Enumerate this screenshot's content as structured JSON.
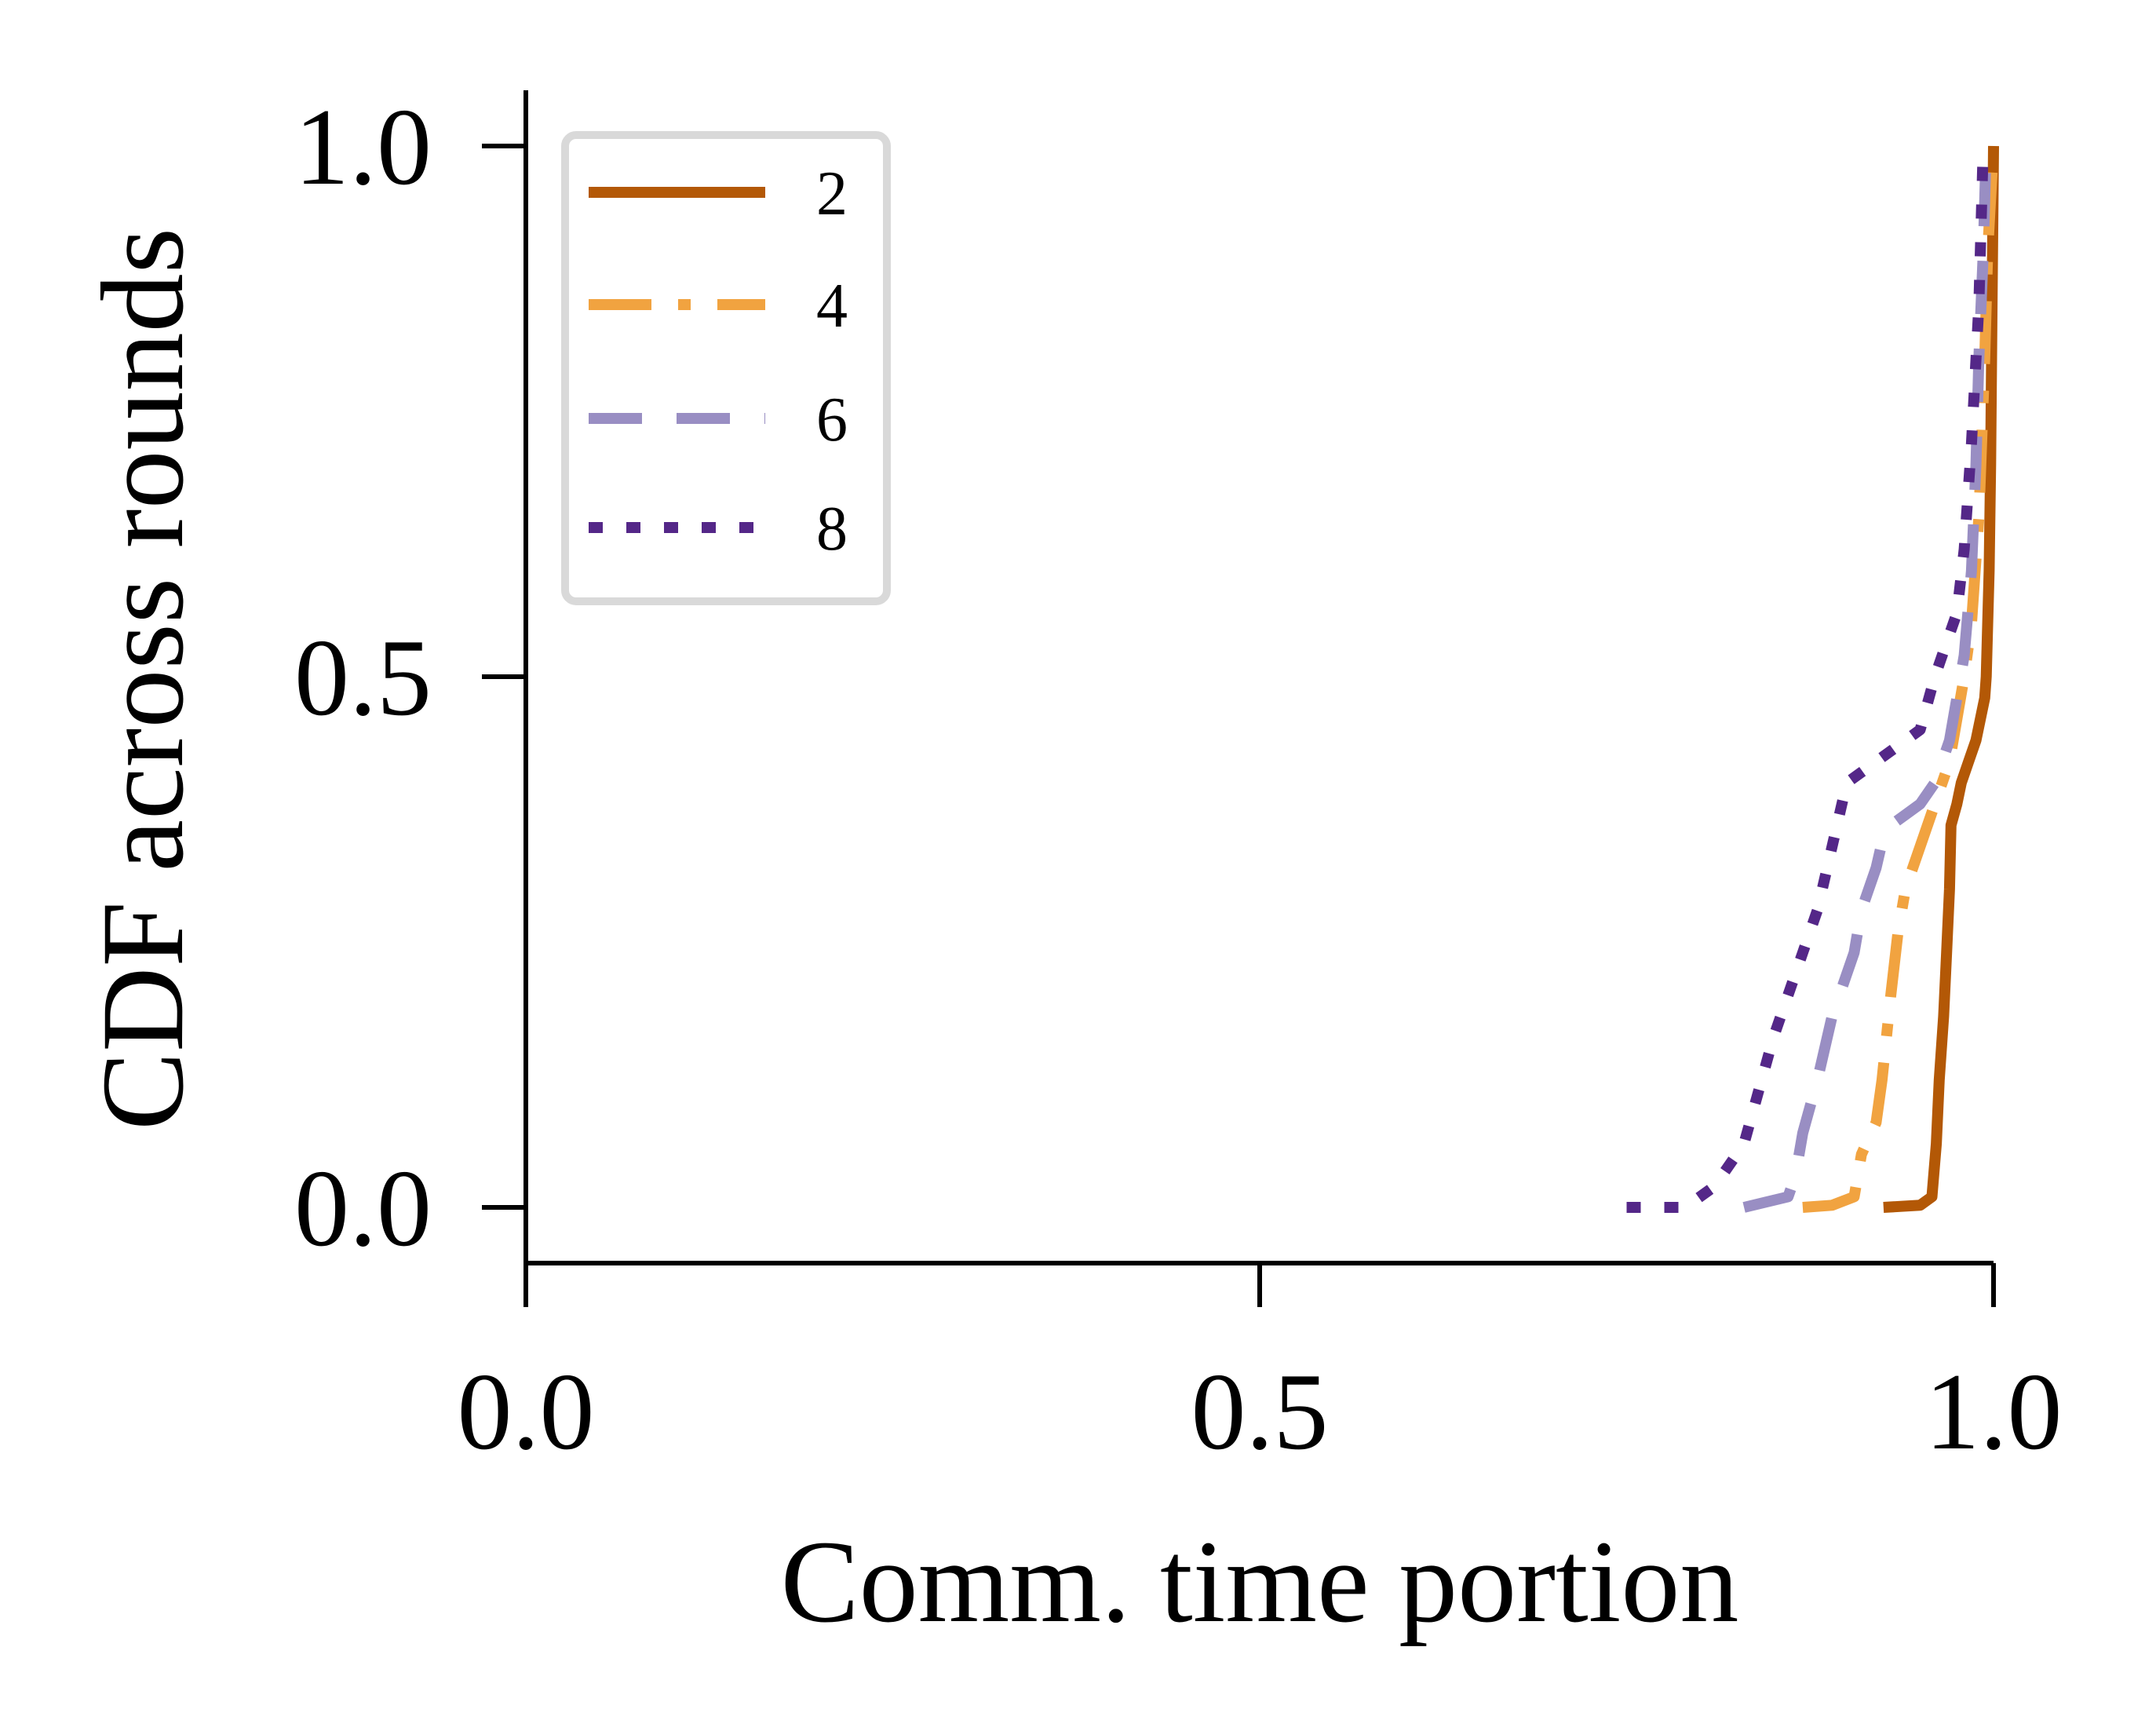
{
  "chart_data": {
    "type": "line",
    "title": "",
    "xlabel": "Comm. time portion",
    "ylabel": "CDF across rounds",
    "xlim": [
      0.0,
      1.0
    ],
    "ylim": [
      -0.05,
      1.05
    ],
    "xticks": [
      "0.0",
      "0.5",
      "1.0"
    ],
    "yticks": [
      "0.0",
      "0.5",
      "1.0"
    ],
    "grid": false,
    "legend_position": "top-left",
    "series": [
      {
        "name": "2",
        "color": "#b35806",
        "dash": "solid",
        "x": [
          0.925,
          0.95,
          0.958,
          0.961,
          0.963,
          0.966,
          0.968,
          0.97,
          0.971,
          0.975,
          0.978,
          0.983,
          0.988,
          0.991,
          0.994,
          0.995,
          0.997,
          0.998,
          0.999,
          1.0
        ],
        "y": [
          0.0,
          0.002,
          0.01,
          0.06,
          0.12,
          0.18,
          0.24,
          0.3,
          0.36,
          0.38,
          0.4,
          0.42,
          0.44,
          0.46,
          0.48,
          0.5,
          0.6,
          0.7,
          0.85,
          1.0
        ]
      },
      {
        "name": "4",
        "color": "#f1a340",
        "dash": "dashdot",
        "x": [
          0.87,
          0.89,
          0.905,
          0.91,
          0.92,
          0.924,
          0.93,
          0.935,
          0.94,
          0.95,
          0.96,
          0.97,
          0.975,
          0.98,
          0.985,
          0.99,
          0.994,
          0.996,
          1.0
        ],
        "y": [
          0.0,
          0.002,
          0.01,
          0.05,
          0.08,
          0.12,
          0.2,
          0.26,
          0.3,
          0.34,
          0.38,
          0.42,
          0.46,
          0.5,
          0.55,
          0.65,
          0.8,
          0.9,
          1.0
        ]
      },
      {
        "name": "6",
        "color": "#998ec3",
        "dash": "dashed",
        "x": [
          0.83,
          0.86,
          0.865,
          0.87,
          0.88,
          0.89,
          0.905,
          0.91,
          0.92,
          0.925,
          0.93,
          0.94,
          0.95,
          0.96,
          0.97,
          0.975,
          0.98,
          0.985,
          0.988,
          0.99,
          0.993,
          0.995
        ],
        "y": [
          0.0,
          0.01,
          0.03,
          0.07,
          0.12,
          0.18,
          0.24,
          0.28,
          0.32,
          0.35,
          0.36,
          0.37,
          0.38,
          0.4,
          0.44,
          0.48,
          0.52,
          0.6,
          0.7,
          0.8,
          0.9,
          1.0
        ]
      },
      {
        "name": "8",
        "color": "#542788",
        "dash": "dotted",
        "x": [
          0.75,
          0.79,
          0.81,
          0.83,
          0.84,
          0.85,
          0.86,
          0.87,
          0.88,
          0.89,
          0.9,
          0.91,
          0.92,
          0.95,
          0.96,
          0.975,
          0.98,
          0.985,
          0.99,
          0.993
        ],
        "y": [
          0.0,
          0.0,
          0.02,
          0.06,
          0.11,
          0.16,
          0.2,
          0.24,
          0.28,
          0.34,
          0.4,
          0.41,
          0.42,
          0.45,
          0.5,
          0.56,
          0.62,
          0.72,
          0.85,
          1.0
        ]
      }
    ]
  }
}
